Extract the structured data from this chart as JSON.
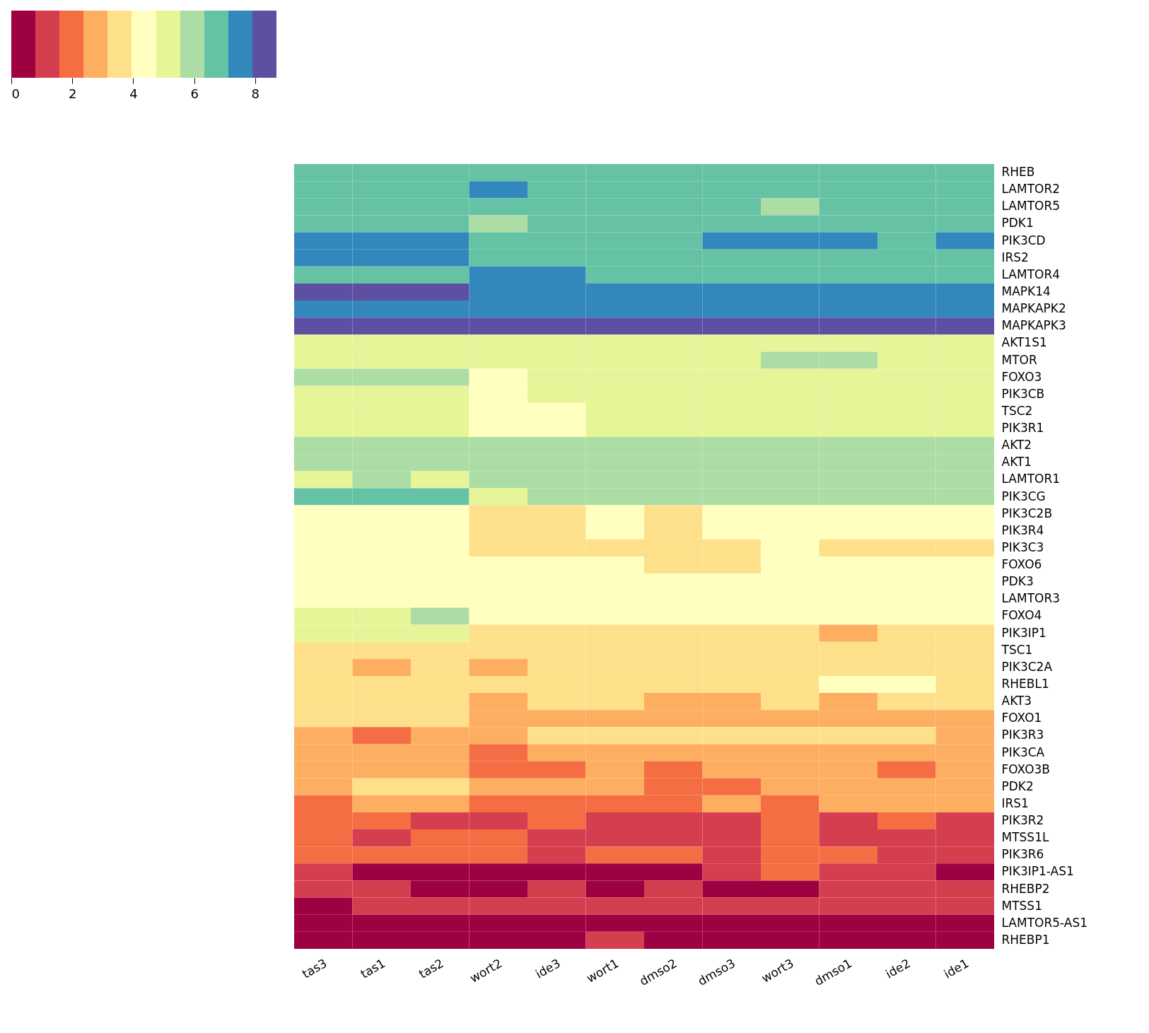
{
  "chart_data": {
    "type": "heatmap",
    "categories": [
      "tas3",
      "tas1",
      "tas2",
      "wort2",
      "ide3",
      "wort1",
      "dmso2",
      "dmso3",
      "wort3",
      "dmso1",
      "ide2",
      "ide1"
    ],
    "y_categories": [
      "RHEB",
      "LAMTOR2",
      "LAMTOR5",
      "PDK1",
      "PIK3CD",
      "IRS2",
      "LAMTOR4",
      "MAPK14",
      "MAPKAPK2",
      "MAPKAPK3",
      "AKT1S1",
      "MTOR",
      "FOXO3",
      "PIK3CB",
      "TSC2",
      "PIK3R1",
      "AKT2",
      "AKT1",
      "LAMTOR1",
      "PIK3CG",
      "PIK3C2B",
      "PIK3R4",
      "PIK3C3",
      "FOXO6",
      "PDK3",
      "LAMTOR3",
      "FOXO4",
      "PIK3IP1",
      "TSC1",
      "PIK3C2A",
      "RHEBL1",
      "AKT3",
      "FOXO1",
      "PIK3R3",
      "PIK3CA",
      "FOXO3B",
      "PDK2",
      "IRS1",
      "PIK3R2",
      "MTSS1L",
      "PIK3R6",
      "PIK3IP1-AS1",
      "RHEBP2",
      "MTSS1",
      "LAMTOR5-AS1",
      "RHEBP1"
    ],
    "cells": [
      [
        6.7,
        6.7,
        6.7,
        6.7,
        6.7,
        6.7,
        6.7,
        6.7,
        6.7,
        6.7,
        6.7,
        6.7
      ],
      [
        6.7,
        6.7,
        6.7,
        7.5,
        6.7,
        6.7,
        6.7,
        6.7,
        6.7,
        6.7,
        6.7,
        6.7
      ],
      [
        6.7,
        6.7,
        6.7,
        6.7,
        6.7,
        6.7,
        6.7,
        6.7,
        5.9,
        6.7,
        6.7,
        6.7
      ],
      [
        6.7,
        6.7,
        6.7,
        5.9,
        6.7,
        6.7,
        6.7,
        6.7,
        6.7,
        6.7,
        6.7,
        6.7
      ],
      [
        7.5,
        7.5,
        7.5,
        6.7,
        6.7,
        6.7,
        6.7,
        7.5,
        7.5,
        7.5,
        6.7,
        7.5
      ],
      [
        7.5,
        7.5,
        7.5,
        6.7,
        6.7,
        6.7,
        6.7,
        6.7,
        6.7,
        6.7,
        6.7,
        6.7
      ],
      [
        6.7,
        6.7,
        6.7,
        7.5,
        7.5,
        6.7,
        6.7,
        6.7,
        6.7,
        6.7,
        6.7,
        6.7
      ],
      [
        8.3,
        8.3,
        8.3,
        7.5,
        7.5,
        7.5,
        7.5,
        7.5,
        7.5,
        7.5,
        7.5,
        7.5
      ],
      [
        7.5,
        7.5,
        7.5,
        7.5,
        7.5,
        7.5,
        7.5,
        7.5,
        7.5,
        7.5,
        7.5,
        7.5
      ],
      [
        8.3,
        8.3,
        8.3,
        8.3,
        8.3,
        8.3,
        8.3,
        8.3,
        8.3,
        8.3,
        8.3,
        8.3
      ],
      [
        5.1,
        5.1,
        5.1,
        5.1,
        5.1,
        5.1,
        5.1,
        5.1,
        5.1,
        5.1,
        5.1,
        5.1
      ],
      [
        5.1,
        5.1,
        5.1,
        5.1,
        5.1,
        5.1,
        5.1,
        5.1,
        5.9,
        5.9,
        5.1,
        5.1
      ],
      [
        5.9,
        5.9,
        5.9,
        4.4,
        5.1,
        5.1,
        5.1,
        5.1,
        5.1,
        5.1,
        5.1,
        5.1
      ],
      [
        5.1,
        5.1,
        5.1,
        4.4,
        5.1,
        5.1,
        5.1,
        5.1,
        5.1,
        5.1,
        5.1,
        5.1
      ],
      [
        5.1,
        5.1,
        5.1,
        4.4,
        4.4,
        5.1,
        5.1,
        5.1,
        5.1,
        5.1,
        5.1,
        5.1
      ],
      [
        5.1,
        5.1,
        5.1,
        4.4,
        4.4,
        5.1,
        5.1,
        5.1,
        5.1,
        5.1,
        5.1,
        5.1
      ],
      [
        5.9,
        5.9,
        5.9,
        5.9,
        5.9,
        5.9,
        5.9,
        5.9,
        5.9,
        5.9,
        5.9,
        5.9
      ],
      [
        5.9,
        5.9,
        5.9,
        5.9,
        5.9,
        5.9,
        5.9,
        5.9,
        5.9,
        5.9,
        5.9,
        5.9
      ],
      [
        5.1,
        5.9,
        5.1,
        5.9,
        5.9,
        5.9,
        5.9,
        5.9,
        5.9,
        5.9,
        5.9,
        5.9
      ],
      [
        6.7,
        6.7,
        6.7,
        5.1,
        5.9,
        5.9,
        5.9,
        5.9,
        5.9,
        5.9,
        5.9,
        5.9
      ],
      [
        4.4,
        4.4,
        4.4,
        3.6,
        3.6,
        4.4,
        3.6,
        4.4,
        4.4,
        4.4,
        4.4,
        4.4
      ],
      [
        4.4,
        4.4,
        4.4,
        3.6,
        3.6,
        4.4,
        3.6,
        4.4,
        4.4,
        4.4,
        4.4,
        4.4
      ],
      [
        4.4,
        4.4,
        4.4,
        3.6,
        3.6,
        3.6,
        3.6,
        3.6,
        4.4,
        3.6,
        3.6,
        3.6
      ],
      [
        4.4,
        4.4,
        4.4,
        4.4,
        4.4,
        4.4,
        3.6,
        3.6,
        4.4,
        4.4,
        4.4,
        4.4
      ],
      [
        4.4,
        4.4,
        4.4,
        4.4,
        4.4,
        4.4,
        4.4,
        4.4,
        4.4,
        4.4,
        4.4,
        4.4
      ],
      [
        4.4,
        4.4,
        4.4,
        4.4,
        4.4,
        4.4,
        4.4,
        4.4,
        4.4,
        4.4,
        4.4,
        4.4
      ],
      [
        5.1,
        5.1,
        5.9,
        4.4,
        4.4,
        4.4,
        4.4,
        4.4,
        4.4,
        4.4,
        4.4,
        4.4
      ],
      [
        5.1,
        5.1,
        5.1,
        3.6,
        3.6,
        3.6,
        3.6,
        3.6,
        3.6,
        2.8,
        3.6,
        3.6
      ],
      [
        3.6,
        3.6,
        3.6,
        3.6,
        3.6,
        3.6,
        3.6,
        3.6,
        3.6,
        3.6,
        3.6,
        3.6
      ],
      [
        3.6,
        2.8,
        3.6,
        2.8,
        3.6,
        3.6,
        3.6,
        3.6,
        3.6,
        3.6,
        3.6,
        3.6
      ],
      [
        3.6,
        3.6,
        3.6,
        3.6,
        3.6,
        3.6,
        3.6,
        3.6,
        3.6,
        4.4,
        4.4,
        3.6
      ],
      [
        3.6,
        3.6,
        3.6,
        2.8,
        3.6,
        3.6,
        2.8,
        2.8,
        3.6,
        2.8,
        3.6,
        3.6
      ],
      [
        3.6,
        3.6,
        3.6,
        2.8,
        2.8,
        2.8,
        2.8,
        2.8,
        2.8,
        2.8,
        2.8,
        2.8
      ],
      [
        2.8,
        2.0,
        2.8,
        2.8,
        3.6,
        3.6,
        3.6,
        3.6,
        3.6,
        3.6,
        3.6,
        2.8
      ],
      [
        2.8,
        2.8,
        2.8,
        2.0,
        2.8,
        2.8,
        2.8,
        2.8,
        2.8,
        2.8,
        2.8,
        2.8
      ],
      [
        2.8,
        2.8,
        2.8,
        2.0,
        2.0,
        2.8,
        2.0,
        2.8,
        2.8,
        2.8,
        2.0,
        2.8
      ],
      [
        2.8,
        3.6,
        3.6,
        2.8,
        2.8,
        2.8,
        2.0,
        2.0,
        2.8,
        2.8,
        2.8,
        2.8
      ],
      [
        2.0,
        2.8,
        2.8,
        2.0,
        2.0,
        2.0,
        2.0,
        2.8,
        2.0,
        2.8,
        2.8,
        2.8
      ],
      [
        2.0,
        2.0,
        1.2,
        1.2,
        2.0,
        1.2,
        1.2,
        1.2,
        2.0,
        1.2,
        2.0,
        1.2
      ],
      [
        2.0,
        1.2,
        2.0,
        2.0,
        1.2,
        1.2,
        1.2,
        1.2,
        2.0,
        1.2,
        1.2,
        1.2
      ],
      [
        2.0,
        2.0,
        2.0,
        2.0,
        1.2,
        2.0,
        2.0,
        1.2,
        2.0,
        2.0,
        1.2,
        1.2
      ],
      [
        1.2,
        0.4,
        0.4,
        0.4,
        0.4,
        0.4,
        0.4,
        1.2,
        2.0,
        1.2,
        1.2,
        0.4
      ],
      [
        1.2,
        1.2,
        0.4,
        0.4,
        1.2,
        0.4,
        1.2,
        0.4,
        0.4,
        1.2,
        1.2,
        1.2
      ],
      [
        0.4,
        1.2,
        1.2,
        1.2,
        1.2,
        1.2,
        1.2,
        1.2,
        1.2,
        1.2,
        1.2,
        1.2
      ],
      [
        0.4,
        0.4,
        0.4,
        0.4,
        0.4,
        0.4,
        0.4,
        0.4,
        0.4,
        0.4,
        0.4,
        0.4
      ],
      [
        0.4,
        0.4,
        0.4,
        0.4,
        0.4,
        1.2,
        0.4,
        0.4,
        0.4,
        0.4,
        0.4,
        0.4
      ]
    ],
    "clim": [
      0,
      8.7
    ],
    "cticks": [
      0,
      2,
      4,
      6,
      8
    ],
    "colors": [
      "#9e0142",
      "#d53e4f",
      "#f46d43",
      "#fdae61",
      "#fee08b",
      "#ffffbf",
      "#e6f598",
      "#abdda4",
      "#66c2a5",
      "#3288bd",
      "#5e4fa2"
    ]
  }
}
